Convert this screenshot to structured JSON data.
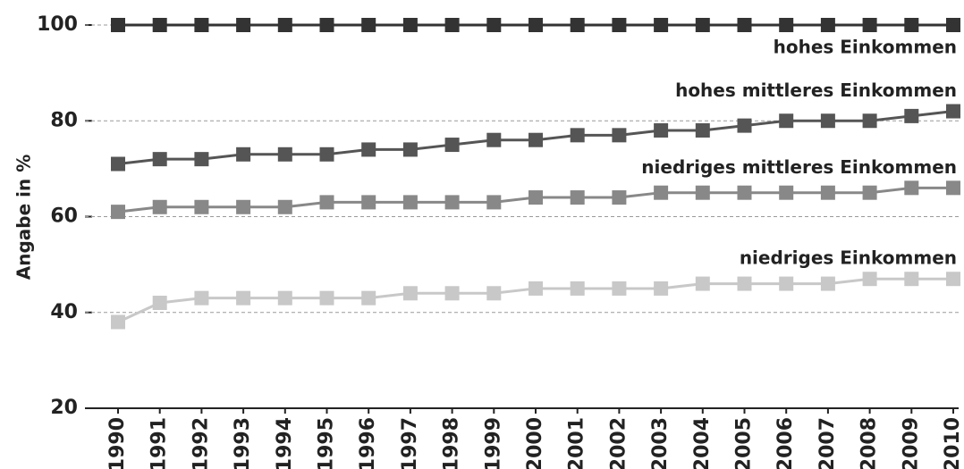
{
  "chart_data": {
    "type": "line",
    "y_label": "Angabe in %",
    "categories": [
      "1990",
      "1991",
      "1992",
      "1993",
      "1994",
      "1995",
      "1996",
      "1997",
      "1998",
      "1999",
      "2000",
      "2001",
      "2002",
      "2003",
      "2004",
      "2005",
      "2006",
      "2007",
      "2008",
      "2009",
      "2010"
    ],
    "series": [
      {
        "name": "hohes Einkommen",
        "color": "#333333",
        "values": [
          100,
          100,
          100,
          100,
          100,
          100,
          100,
          100,
          100,
          100,
          100,
          100,
          100,
          100,
          100,
          100,
          100,
          100,
          100,
          100,
          100
        ]
      },
      {
        "name": "hohes mittleres Einkommen",
        "color": "#555555",
        "values": [
          71,
          72,
          72,
          73,
          73,
          73,
          74,
          74,
          75,
          76,
          76,
          77,
          77,
          78,
          78,
          79,
          80,
          80,
          80,
          81,
          82
        ]
      },
      {
        "name": "niedriges mittleres Einkommen",
        "color": "#888888",
        "values": [
          61,
          62,
          62,
          62,
          62,
          63,
          63,
          63,
          63,
          63,
          64,
          64,
          64,
          65,
          65,
          65,
          65,
          65,
          65,
          66,
          66
        ]
      },
      {
        "name": "niedriges Einkommen",
        "color": "#c8c8c8",
        "values": [
          38,
          42,
          43,
          43,
          43,
          43,
          43,
          44,
          44,
          44,
          45,
          45,
          45,
          45,
          46,
          46,
          46,
          46,
          47,
          47,
          47
        ]
      }
    ],
    "ylim": [
      20,
      100
    ],
    "yticks": [
      20,
      40,
      60,
      80,
      100
    ],
    "grid": true
  }
}
